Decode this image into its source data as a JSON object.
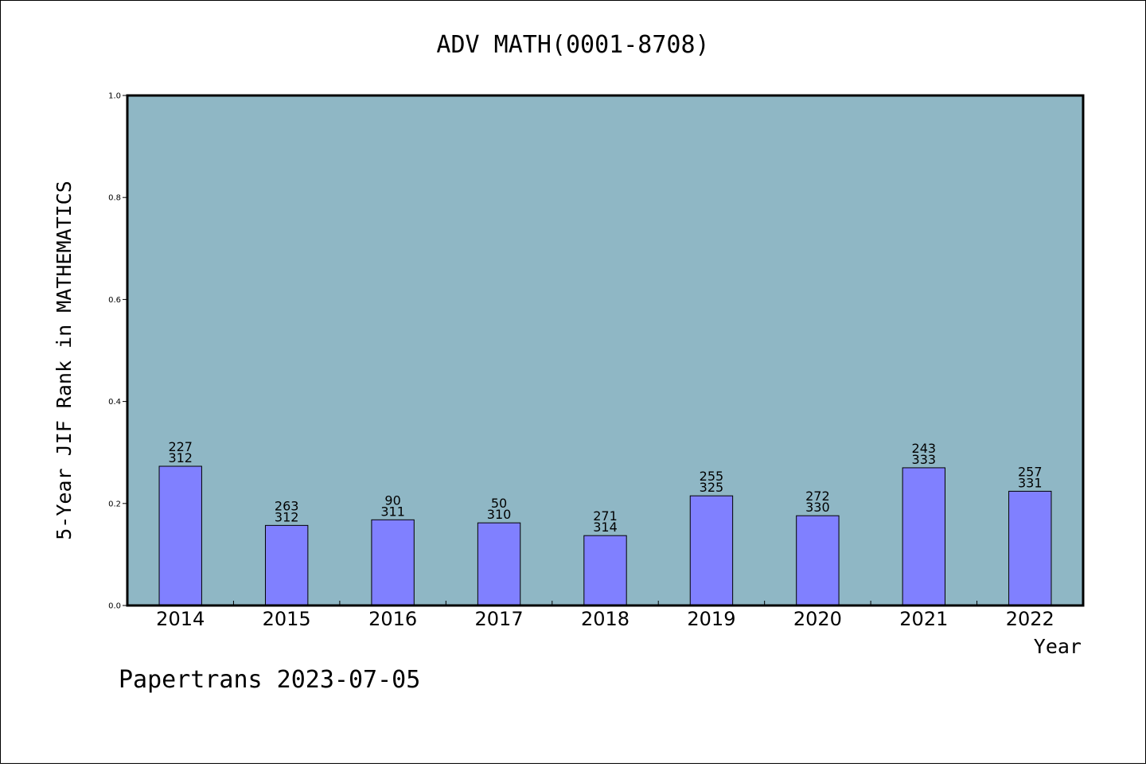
{
  "chart_data": {
    "type": "bar",
    "title": "ADV MATH(0001-8708)",
    "xlabel": "Year",
    "ylabel": "5-Year JIF Rank in MATHEMATICS",
    "ylim": [
      0,
      1.0
    ],
    "yticks": [
      "0.0",
      "0.2",
      "0.4",
      "0.6",
      "0.8",
      "1.0"
    ],
    "grid": false,
    "categories": [
      "2014",
      "2015",
      "2016",
      "2017",
      "2018",
      "2019",
      "2020",
      "2021",
      "2022"
    ],
    "values": [
      0.273,
      0.157,
      0.168,
      0.162,
      0.137,
      0.215,
      0.176,
      0.27,
      0.224
    ],
    "labels_top": [
      "227",
      "263",
      "90",
      "50",
      "271",
      "255",
      "272",
      "243",
      "257"
    ],
    "labels_bottom": [
      "312",
      "312",
      "311",
      "310",
      "314",
      "325",
      "330",
      "333",
      "331"
    ],
    "colors": {
      "plot_background": "#8fb7c5",
      "bar_fill": "#8080ff",
      "bar_stroke": "#000000"
    }
  },
  "footer": "Papertrans 2023-07-05"
}
